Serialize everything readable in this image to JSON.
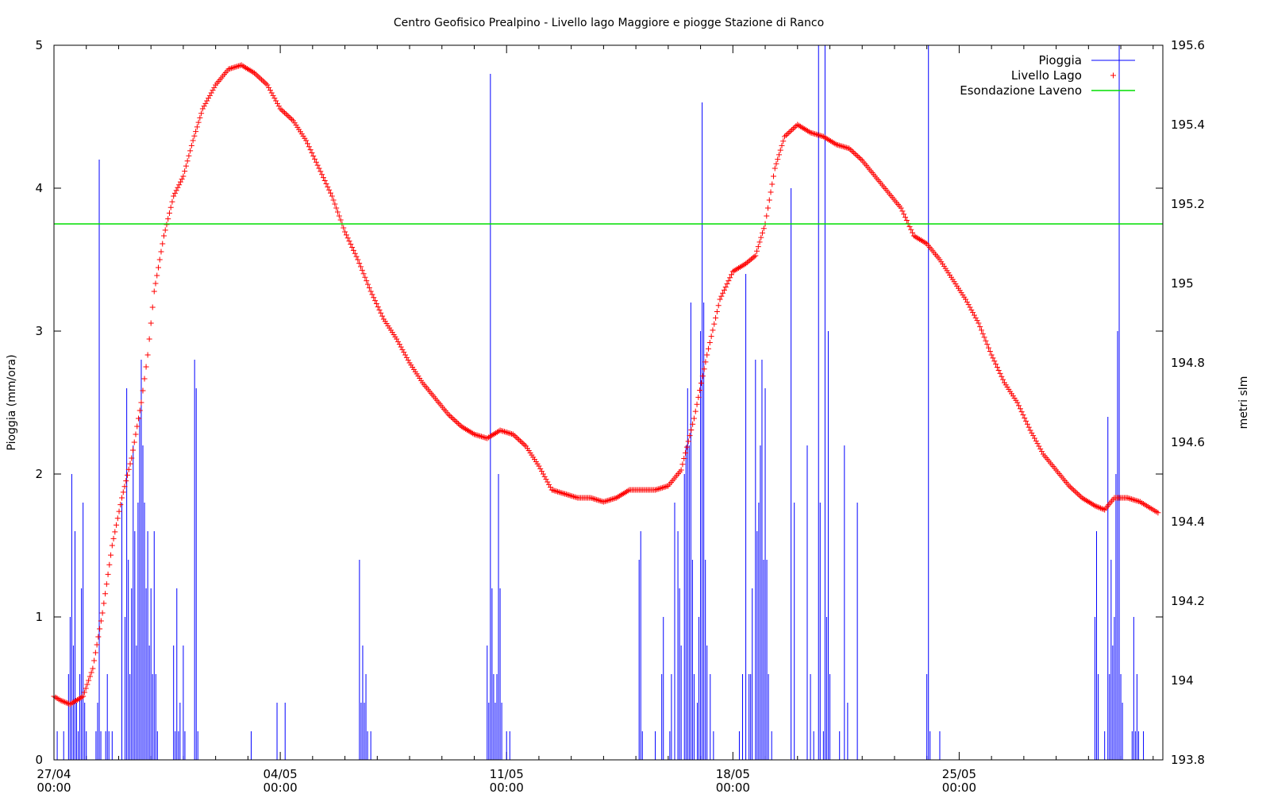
{
  "chart_data": {
    "type": "line",
    "title": "Centro Geofisico Prealpino - Livello lago Maggiore e piogge Stazione di Ranco",
    "xlabel": "",
    "ylabel": "Pioggia (mm/ora)",
    "y2label": "metri slm",
    "x_unit": "days since 27/04 00:00",
    "xlim": [
      0,
      34.3
    ],
    "ylim": [
      0,
      5
    ],
    "y2lim": [
      193.8,
      195.6
    ],
    "x_ticks": [
      {
        "x": 0,
        "date": "27/04",
        "time": "00:00"
      },
      {
        "x": 7,
        "date": "04/05",
        "time": "00:00"
      },
      {
        "x": 14,
        "date": "11/05",
        "time": "00:00"
      },
      {
        "x": 21,
        "date": "18/05",
        "time": "00:00"
      },
      {
        "x": 28,
        "date": "25/05",
        "time": "00:00"
      }
    ],
    "y_ticks": [
      "0",
      "1",
      "2",
      "3",
      "4",
      "5"
    ],
    "y2_ticks": [
      "193.8",
      "194",
      "194.2",
      "194.4",
      "194.6",
      "194.8",
      "195",
      "195.2",
      "195.4",
      "195.6"
    ],
    "legend": {
      "placement": "top-right",
      "entries": [
        {
          "label": "Pioggia",
          "color": "#0000ff",
          "style": "line"
        },
        {
          "label": "Livello Lago",
          "color": "#ff0000",
          "style": "plus"
        },
        {
          "label": "Esondazione Laveno",
          "color": "#00dd00",
          "style": "line"
        }
      ]
    },
    "series": [
      {
        "name": "Pioggia",
        "color": "#0000ff",
        "axis": "left",
        "kind": "impulse",
        "points": [
          [
            0.1,
            0.2
          ],
          [
            0.3,
            0.2
          ],
          [
            0.45,
            0.6
          ],
          [
            0.5,
            1.0
          ],
          [
            0.55,
            2.0
          ],
          [
            0.6,
            0.8
          ],
          [
            0.65,
            1.6
          ],
          [
            0.7,
            0.4
          ],
          [
            0.75,
            0.2
          ],
          [
            0.8,
            0.6
          ],
          [
            0.85,
            1.2
          ],
          [
            0.9,
            1.8
          ],
          [
            0.95,
            0.4
          ],
          [
            1.0,
            0.2
          ],
          [
            1.3,
            0.2
          ],
          [
            1.35,
            0.4
          ],
          [
            1.4,
            4.2
          ],
          [
            1.45,
            0.2
          ],
          [
            1.6,
            0.2
          ],
          [
            1.65,
            0.6
          ],
          [
            1.7,
            0.2
          ],
          [
            1.8,
            0.2
          ],
          [
            2.1,
            1.8
          ],
          [
            2.2,
            1.0
          ],
          [
            2.25,
            2.6
          ],
          [
            2.3,
            1.4
          ],
          [
            2.35,
            0.6
          ],
          [
            2.4,
            1.2
          ],
          [
            2.45,
            2.2
          ],
          [
            2.5,
            1.6
          ],
          [
            2.55,
            0.8
          ],
          [
            2.6,
            1.8
          ],
          [
            2.65,
            2.4
          ],
          [
            2.7,
            2.8
          ],
          [
            2.75,
            2.2
          ],
          [
            2.8,
            1.8
          ],
          [
            2.85,
            1.2
          ],
          [
            2.9,
            1.6
          ],
          [
            2.95,
            0.8
          ],
          [
            3.0,
            1.2
          ],
          [
            3.05,
            0.6
          ],
          [
            3.1,
            1.6
          ],
          [
            3.15,
            0.6
          ],
          [
            3.2,
            0.2
          ],
          [
            3.7,
            0.8
          ],
          [
            3.75,
            0.2
          ],
          [
            3.8,
            1.2
          ],
          [
            3.85,
            0.2
          ],
          [
            3.9,
            0.4
          ],
          [
            4.0,
            0.8
          ],
          [
            4.05,
            0.2
          ],
          [
            4.35,
            2.8
          ],
          [
            4.4,
            2.6
          ],
          [
            4.45,
            0.2
          ],
          [
            6.1,
            0.2
          ],
          [
            6.9,
            0.4
          ],
          [
            7.15,
            0.4
          ],
          [
            9.45,
            1.4
          ],
          [
            9.5,
            0.4
          ],
          [
            9.55,
            0.8
          ],
          [
            9.6,
            0.4
          ],
          [
            9.65,
            0.6
          ],
          [
            9.7,
            0.2
          ],
          [
            9.8,
            0.2
          ],
          [
            13.4,
            0.8
          ],
          [
            13.45,
            0.4
          ],
          [
            13.5,
            4.8
          ],
          [
            13.55,
            1.2
          ],
          [
            13.6,
            0.6
          ],
          [
            13.65,
            0.4
          ],
          [
            13.7,
            0.6
          ],
          [
            13.75,
            2.0
          ],
          [
            13.8,
            1.2
          ],
          [
            13.85,
            0.4
          ],
          [
            14.0,
            0.2
          ],
          [
            14.1,
            0.2
          ],
          [
            18.1,
            1.4
          ],
          [
            18.15,
            1.6
          ],
          [
            18.2,
            0.2
          ],
          [
            18.6,
            0.2
          ],
          [
            18.8,
            0.6
          ],
          [
            18.85,
            1.0
          ],
          [
            19.05,
            0.2
          ],
          [
            19.1,
            0.6
          ],
          [
            19.2,
            1.8
          ],
          [
            19.3,
            1.6
          ],
          [
            19.35,
            1.2
          ],
          [
            19.4,
            0.8
          ],
          [
            19.5,
            2.0
          ],
          [
            19.55,
            2.2
          ],
          [
            19.6,
            2.6
          ],
          [
            19.65,
            2.2
          ],
          [
            19.7,
            3.2
          ],
          [
            19.75,
            1.4
          ],
          [
            19.8,
            0.6
          ],
          [
            19.9,
            0.4
          ],
          [
            19.95,
            1.0
          ],
          [
            20.0,
            3.0
          ],
          [
            20.05,
            4.6
          ],
          [
            20.1,
            3.2
          ],
          [
            20.15,
            1.4
          ],
          [
            20.2,
            0.8
          ],
          [
            20.3,
            0.6
          ],
          [
            20.4,
            0.2
          ],
          [
            21.2,
            0.2
          ],
          [
            21.3,
            0.6
          ],
          [
            21.4,
            3.4
          ],
          [
            21.5,
            0.6
          ],
          [
            21.55,
            0.6
          ],
          [
            21.6,
            1.2
          ],
          [
            21.7,
            2.8
          ],
          [
            21.75,
            1.6
          ],
          [
            21.8,
            1.8
          ],
          [
            21.85,
            2.2
          ],
          [
            21.9,
            2.8
          ],
          [
            21.95,
            1.4
          ],
          [
            22.0,
            2.6
          ],
          [
            22.05,
            1.4
          ],
          [
            22.1,
            0.6
          ],
          [
            22.2,
            0.2
          ],
          [
            22.8,
            4.0
          ],
          [
            22.9,
            1.8
          ],
          [
            23.3,
            2.2
          ],
          [
            23.4,
            0.6
          ],
          [
            23.5,
            0.2
          ],
          [
            23.65,
            5.0
          ],
          [
            23.7,
            1.8
          ],
          [
            23.8,
            0.2
          ],
          [
            23.85,
            5.0
          ],
          [
            23.9,
            1.0
          ],
          [
            23.95,
            3.0
          ],
          [
            24.0,
            0.6
          ],
          [
            24.3,
            0.2
          ],
          [
            24.45,
            2.2
          ],
          [
            24.55,
            0.4
          ],
          [
            24.85,
            1.8
          ],
          [
            27.0,
            0.6
          ],
          [
            27.05,
            5.0
          ],
          [
            27.1,
            0.2
          ],
          [
            27.4,
            0.2
          ],
          [
            32.2,
            1.0
          ],
          [
            32.25,
            1.6
          ],
          [
            32.3,
            0.6
          ],
          [
            32.5,
            0.2
          ],
          [
            32.6,
            2.4
          ],
          [
            32.65,
            0.6
          ],
          [
            32.7,
            1.4
          ],
          [
            32.75,
            0.8
          ],
          [
            32.8,
            1.0
          ],
          [
            32.85,
            2.0
          ],
          [
            32.9,
            3.0
          ],
          [
            32.95,
            5.0
          ],
          [
            33.0,
            0.6
          ],
          [
            33.05,
            0.4
          ],
          [
            33.35,
            0.2
          ],
          [
            33.4,
            1.0
          ],
          [
            33.45,
            0.2
          ],
          [
            33.5,
            0.6
          ],
          [
            33.55,
            0.2
          ],
          [
            33.7,
            0.2
          ]
        ]
      },
      {
        "name": "Livello Lago",
        "color": "#ff0000",
        "axis": "right",
        "kind": "plus",
        "points": [
          [
            0,
            193.96
          ],
          [
            0.2,
            193.95
          ],
          [
            0.5,
            193.94
          ],
          [
            0.9,
            193.96
          ],
          [
            1.2,
            194.03
          ],
          [
            1.5,
            194.17
          ],
          [
            1.8,
            194.34
          ],
          [
            2.1,
            194.46
          ],
          [
            2.4,
            194.56
          ],
          [
            2.7,
            194.7
          ],
          [
            2.9,
            194.82
          ],
          [
            3.1,
            194.98
          ],
          [
            3.4,
            195.12
          ],
          [
            3.7,
            195.22
          ],
          [
            4.0,
            195.27
          ],
          [
            4.3,
            195.36
          ],
          [
            4.6,
            195.44
          ],
          [
            5.0,
            195.5
          ],
          [
            5.4,
            195.54
          ],
          [
            5.8,
            195.55
          ],
          [
            6.2,
            195.53
          ],
          [
            6.6,
            195.5
          ],
          [
            7.0,
            195.44
          ],
          [
            7.4,
            195.41
          ],
          [
            7.8,
            195.36
          ],
          [
            8.2,
            195.29
          ],
          [
            8.6,
            195.22
          ],
          [
            9.0,
            195.13
          ],
          [
            9.4,
            195.06
          ],
          [
            9.8,
            194.98
          ],
          [
            10.2,
            194.91
          ],
          [
            10.6,
            194.86
          ],
          [
            11.0,
            194.8
          ],
          [
            11.4,
            194.75
          ],
          [
            11.8,
            194.71
          ],
          [
            12.2,
            194.67
          ],
          [
            12.6,
            194.64
          ],
          [
            13.0,
            194.62
          ],
          [
            13.4,
            194.61
          ],
          [
            13.8,
            194.63
          ],
          [
            14.2,
            194.62
          ],
          [
            14.6,
            194.59
          ],
          [
            15.0,
            194.54
          ],
          [
            15.4,
            194.48
          ],
          [
            15.8,
            194.47
          ],
          [
            16.2,
            194.46
          ],
          [
            16.6,
            194.46
          ],
          [
            17.0,
            194.45
          ],
          [
            17.4,
            194.46
          ],
          [
            17.8,
            194.48
          ],
          [
            18.2,
            194.48
          ],
          [
            18.6,
            194.48
          ],
          [
            19.0,
            194.49
          ],
          [
            19.4,
            194.53
          ],
          [
            19.8,
            194.66
          ],
          [
            20.2,
            194.82
          ],
          [
            20.6,
            194.96
          ],
          [
            21.0,
            195.03
          ],
          [
            21.4,
            195.05
          ],
          [
            21.7,
            195.07
          ],
          [
            22.0,
            195.15
          ],
          [
            22.3,
            195.29
          ],
          [
            22.6,
            195.37
          ],
          [
            23.0,
            195.4
          ],
          [
            23.4,
            195.38
          ],
          [
            23.8,
            195.37
          ],
          [
            24.2,
            195.35
          ],
          [
            24.6,
            195.34
          ],
          [
            25.0,
            195.31
          ],
          [
            25.4,
            195.27
          ],
          [
            25.8,
            195.23
          ],
          [
            26.2,
            195.19
          ],
          [
            26.6,
            195.12
          ],
          [
            27.0,
            195.1
          ],
          [
            27.4,
            195.06
          ],
          [
            27.8,
            195.01
          ],
          [
            28.2,
            194.96
          ],
          [
            28.6,
            194.9
          ],
          [
            29.0,
            194.82
          ],
          [
            29.4,
            194.75
          ],
          [
            29.8,
            194.7
          ],
          [
            30.2,
            194.63
          ],
          [
            30.6,
            194.57
          ],
          [
            31.0,
            194.53
          ],
          [
            31.4,
            194.49
          ],
          [
            31.8,
            194.46
          ],
          [
            32.2,
            194.44
          ],
          [
            32.5,
            194.43
          ],
          [
            32.8,
            194.46
          ],
          [
            33.2,
            194.46
          ],
          [
            33.6,
            194.45
          ],
          [
            33.8,
            194.44
          ],
          [
            34.0,
            194.43
          ],
          [
            34.2,
            194.42
          ]
        ]
      },
      {
        "name": "Esondazione Laveno",
        "color": "#00dd00",
        "axis": "right",
        "kind": "line",
        "level": 195.15
      }
    ]
  }
}
